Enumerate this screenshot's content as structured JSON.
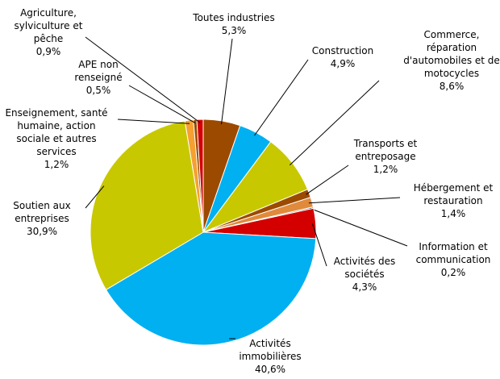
{
  "chart_data": {
    "type": "pie",
    "categories": [
      "Toutes industries",
      "Construction",
      "Commerce, réparation d'automobiles et de motocycles",
      "Transports et entreposage",
      "Hébergement et restauration",
      "Information et communication",
      "Activités des sociétés",
      "Activités immobilières",
      "Soutien aux entreprises",
      "Enseignement, santé humaine, action sociale et autres services",
      "APE non renseigné",
      "Agriculture, sylviculture et pêche"
    ],
    "values": [
      5.3,
      4.9,
      8.6,
      1.2,
      1.4,
      0.2,
      4.3,
      40.6,
      30.9,
      1.2,
      0.5,
      0.9
    ],
    "value_labels": [
      "5,3%",
      "4,9%",
      "8,6%",
      "1,2%",
      "1,4%",
      "0,2%",
      "4,3%",
      "40,6%",
      "30,9%",
      "1,2%",
      "0,5%",
      "0,9%"
    ],
    "colors": [
      "#9c4a00",
      "#00b0f0",
      "#c8c800",
      "#9c4a00",
      "#e08a3c",
      "#7f7f7f",
      "#d40000",
      "#00b0f0",
      "#c8c800",
      "#f5a030",
      "#9c4a00",
      "#d40000"
    ]
  }
}
